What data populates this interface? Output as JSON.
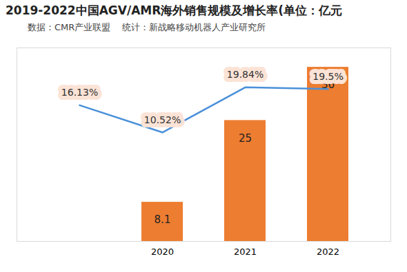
{
  "chart_data": {
    "type": "bar",
    "title": "2019-2022中国AGV/AMR海外销售规模及增长率(单位：亿元",
    "subtitle": "数据：CMR产业联盟    统计：新战略移动机器人产业研究所",
    "categories": [
      null,
      "2020",
      "2021",
      "2022"
    ],
    "series": [
      {
        "type": "bar",
        "color": "#ed7d31",
        "values": [
          null,
          8.1,
          25,
          36
        ]
      },
      {
        "type": "line",
        "axis": "y2",
        "color": "#4a90d9",
        "values": [
          16.13,
          10.52,
          19.84,
          19.5
        ],
        "value_labels": [
          "16.13%",
          "10.52%",
          "19.84%",
          "19.5%"
        ]
      }
    ],
    "ylim": [
      0,
      40
    ],
    "y2lim": [
      -12,
      28
    ],
    "data_labels": true,
    "tick_labels": "x"
  }
}
